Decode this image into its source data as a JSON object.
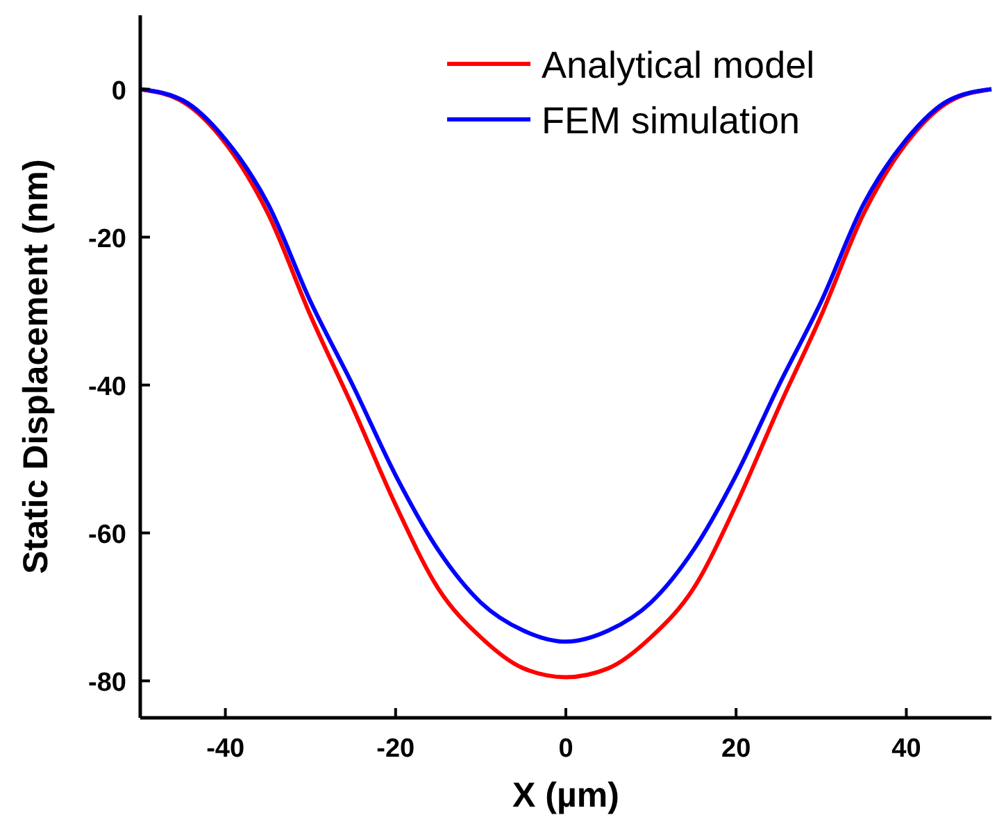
{
  "chart_data": {
    "type": "line",
    "xlabel": "X (µm)",
    "ylabel": "Static Displacement (nm)",
    "x": [
      -50,
      -45,
      -40,
      -35,
      -30,
      -25,
      -20,
      -15,
      -10,
      -5,
      0,
      5,
      10,
      15,
      20,
      25,
      30,
      35,
      40,
      45,
      50
    ],
    "series": [
      {
        "name": "Analytical model",
        "color": "#ff0000",
        "values": [
          0,
          -1.7,
          -7.3,
          -16.8,
          -30.6,
          -43.1,
          -56.2,
          -67.5,
          -74.1,
          -78.3,
          -79.5,
          -78.3,
          -74.1,
          -67.5,
          -56.2,
          -43.1,
          -30.6,
          -16.8,
          -7.3,
          -1.7,
          0
        ]
      },
      {
        "name": "FEM simulation",
        "color": "#0000ff",
        "values": [
          0,
          -1.5,
          -6.8,
          -15.5,
          -28.7,
          -40.1,
          -52.2,
          -62.3,
          -69.4,
          -73.2,
          -74.7,
          -73.2,
          -69.4,
          -62.3,
          -52.2,
          -40.1,
          -28.7,
          -15.5,
          -6.8,
          -1.5,
          0
        ]
      }
    ],
    "xlim": [
      -50,
      50
    ],
    "xticks": [
      -40,
      -20,
      0,
      20,
      40
    ],
    "ylim": [
      -85,
      10
    ],
    "yticks": [
      -80,
      -60,
      -40,
      -20,
      0
    ],
    "legend": "top right",
    "grid": false,
    "marker": "none",
    "line_style": "solid"
  }
}
